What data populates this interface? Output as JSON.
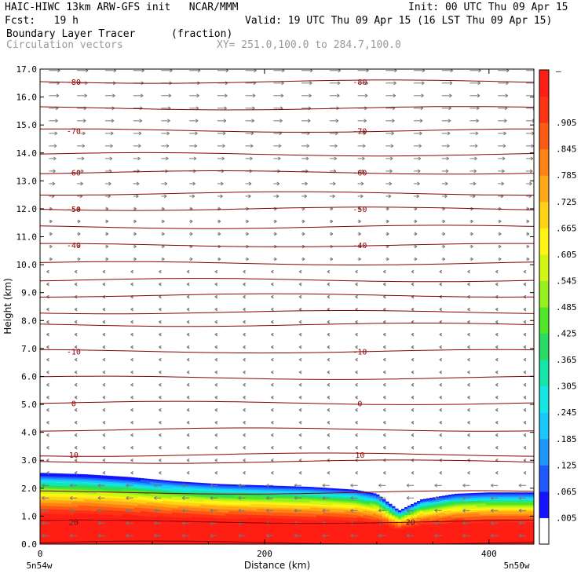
{
  "header": {
    "model": "HAIC-HIWC 13km ARW-GFS init   NCAR/MMM",
    "init": "Init: 00 UTC Thu 09 Apr 15",
    "fcst": "Fcst:   19 h",
    "valid": "Valid: 19 UTC Thu 09 Apr 15 (16 LST Thu 09 Apr 15)",
    "field": "Boundary Layer Tracer",
    "units": "(fraction)",
    "vectors": "Circulation vectors",
    "xy": "XY= 251.0,100.0 to 284.7,100.0"
  },
  "chart_data": {
    "type": "heatmap",
    "title": "Boundary Layer Tracer",
    "xlabel": "Distance (km)",
    "ylabel": "Height (km)",
    "xlim": [
      0,
      440
    ],
    "ylim": [
      0,
      17
    ],
    "x_ticks": [
      "0",
      "200",
      "400"
    ],
    "x_tick_values": [
      0,
      200,
      400
    ],
    "y_ticks": [
      "0.0",
      "1.0",
      "2.0",
      "3.0",
      "4.0",
      "5.0",
      "6.0",
      "7.0",
      "8.0",
      "9.0",
      "10.0",
      "11.0",
      "12.0",
      "13.0",
      "14.0",
      "15.0",
      "16.0",
      "17.0"
    ],
    "y_tick_values": [
      0,
      1,
      2,
      3,
      4,
      5,
      6,
      7,
      8,
      9,
      10,
      11,
      12,
      13,
      14,
      15,
      16,
      17
    ],
    "x_endpoints": [
      "5n54w",
      "5n50w"
    ],
    "colorbar": {
      "labels": [
        ".005",
        ".065",
        ".125",
        ".185",
        ".245",
        ".305",
        ".365",
        ".425",
        ".485",
        ".545",
        ".605",
        ".665",
        ".725",
        ".785",
        ".845",
        ".905"
      ],
      "top_label": "–",
      "colors": [
        "#ffffff",
        "#1414ff",
        "#1e5aff",
        "#1e96ff",
        "#19c8ff",
        "#14e6e6",
        "#14e6aa",
        "#28dc64",
        "#50e628",
        "#96f01e",
        "#d2f514",
        "#fff514",
        "#ffd214",
        "#ffaa14",
        "#ff8214",
        "#ff5a14",
        "#ff3214",
        "#ff1e14"
      ]
    },
    "temperature_contours": [
      {
        "label": "-80",
        "height_km": 16.55
      },
      {
        "label": "-70",
        "height_km": 14.8
      },
      {
        "label": "-60",
        "height_km": 13.3
      },
      {
        "label": "-50",
        "height_km": 12.0
      },
      {
        "label": "-40",
        "height_km": 10.7
      },
      {
        "label": "-10",
        "height_km": 6.9
      },
      {
        "label": "0",
        "height_km": 5.05
      },
      {
        "label": "10",
        "height_km": 3.2
      },
      {
        "label": "20",
        "height_km": 0.8
      }
    ],
    "boundary_layer_top": {
      "distance_km": [
        0,
        40,
        80,
        120,
        160,
        200,
        240,
        280,
        300,
        320,
        340,
        370,
        400,
        440
      ],
      "height_km": [
        2.55,
        2.5,
        2.4,
        2.25,
        2.15,
        2.1,
        2.05,
        1.95,
        1.8,
        1.2,
        1.6,
        1.8,
        1.85,
        1.85
      ]
    }
  }
}
